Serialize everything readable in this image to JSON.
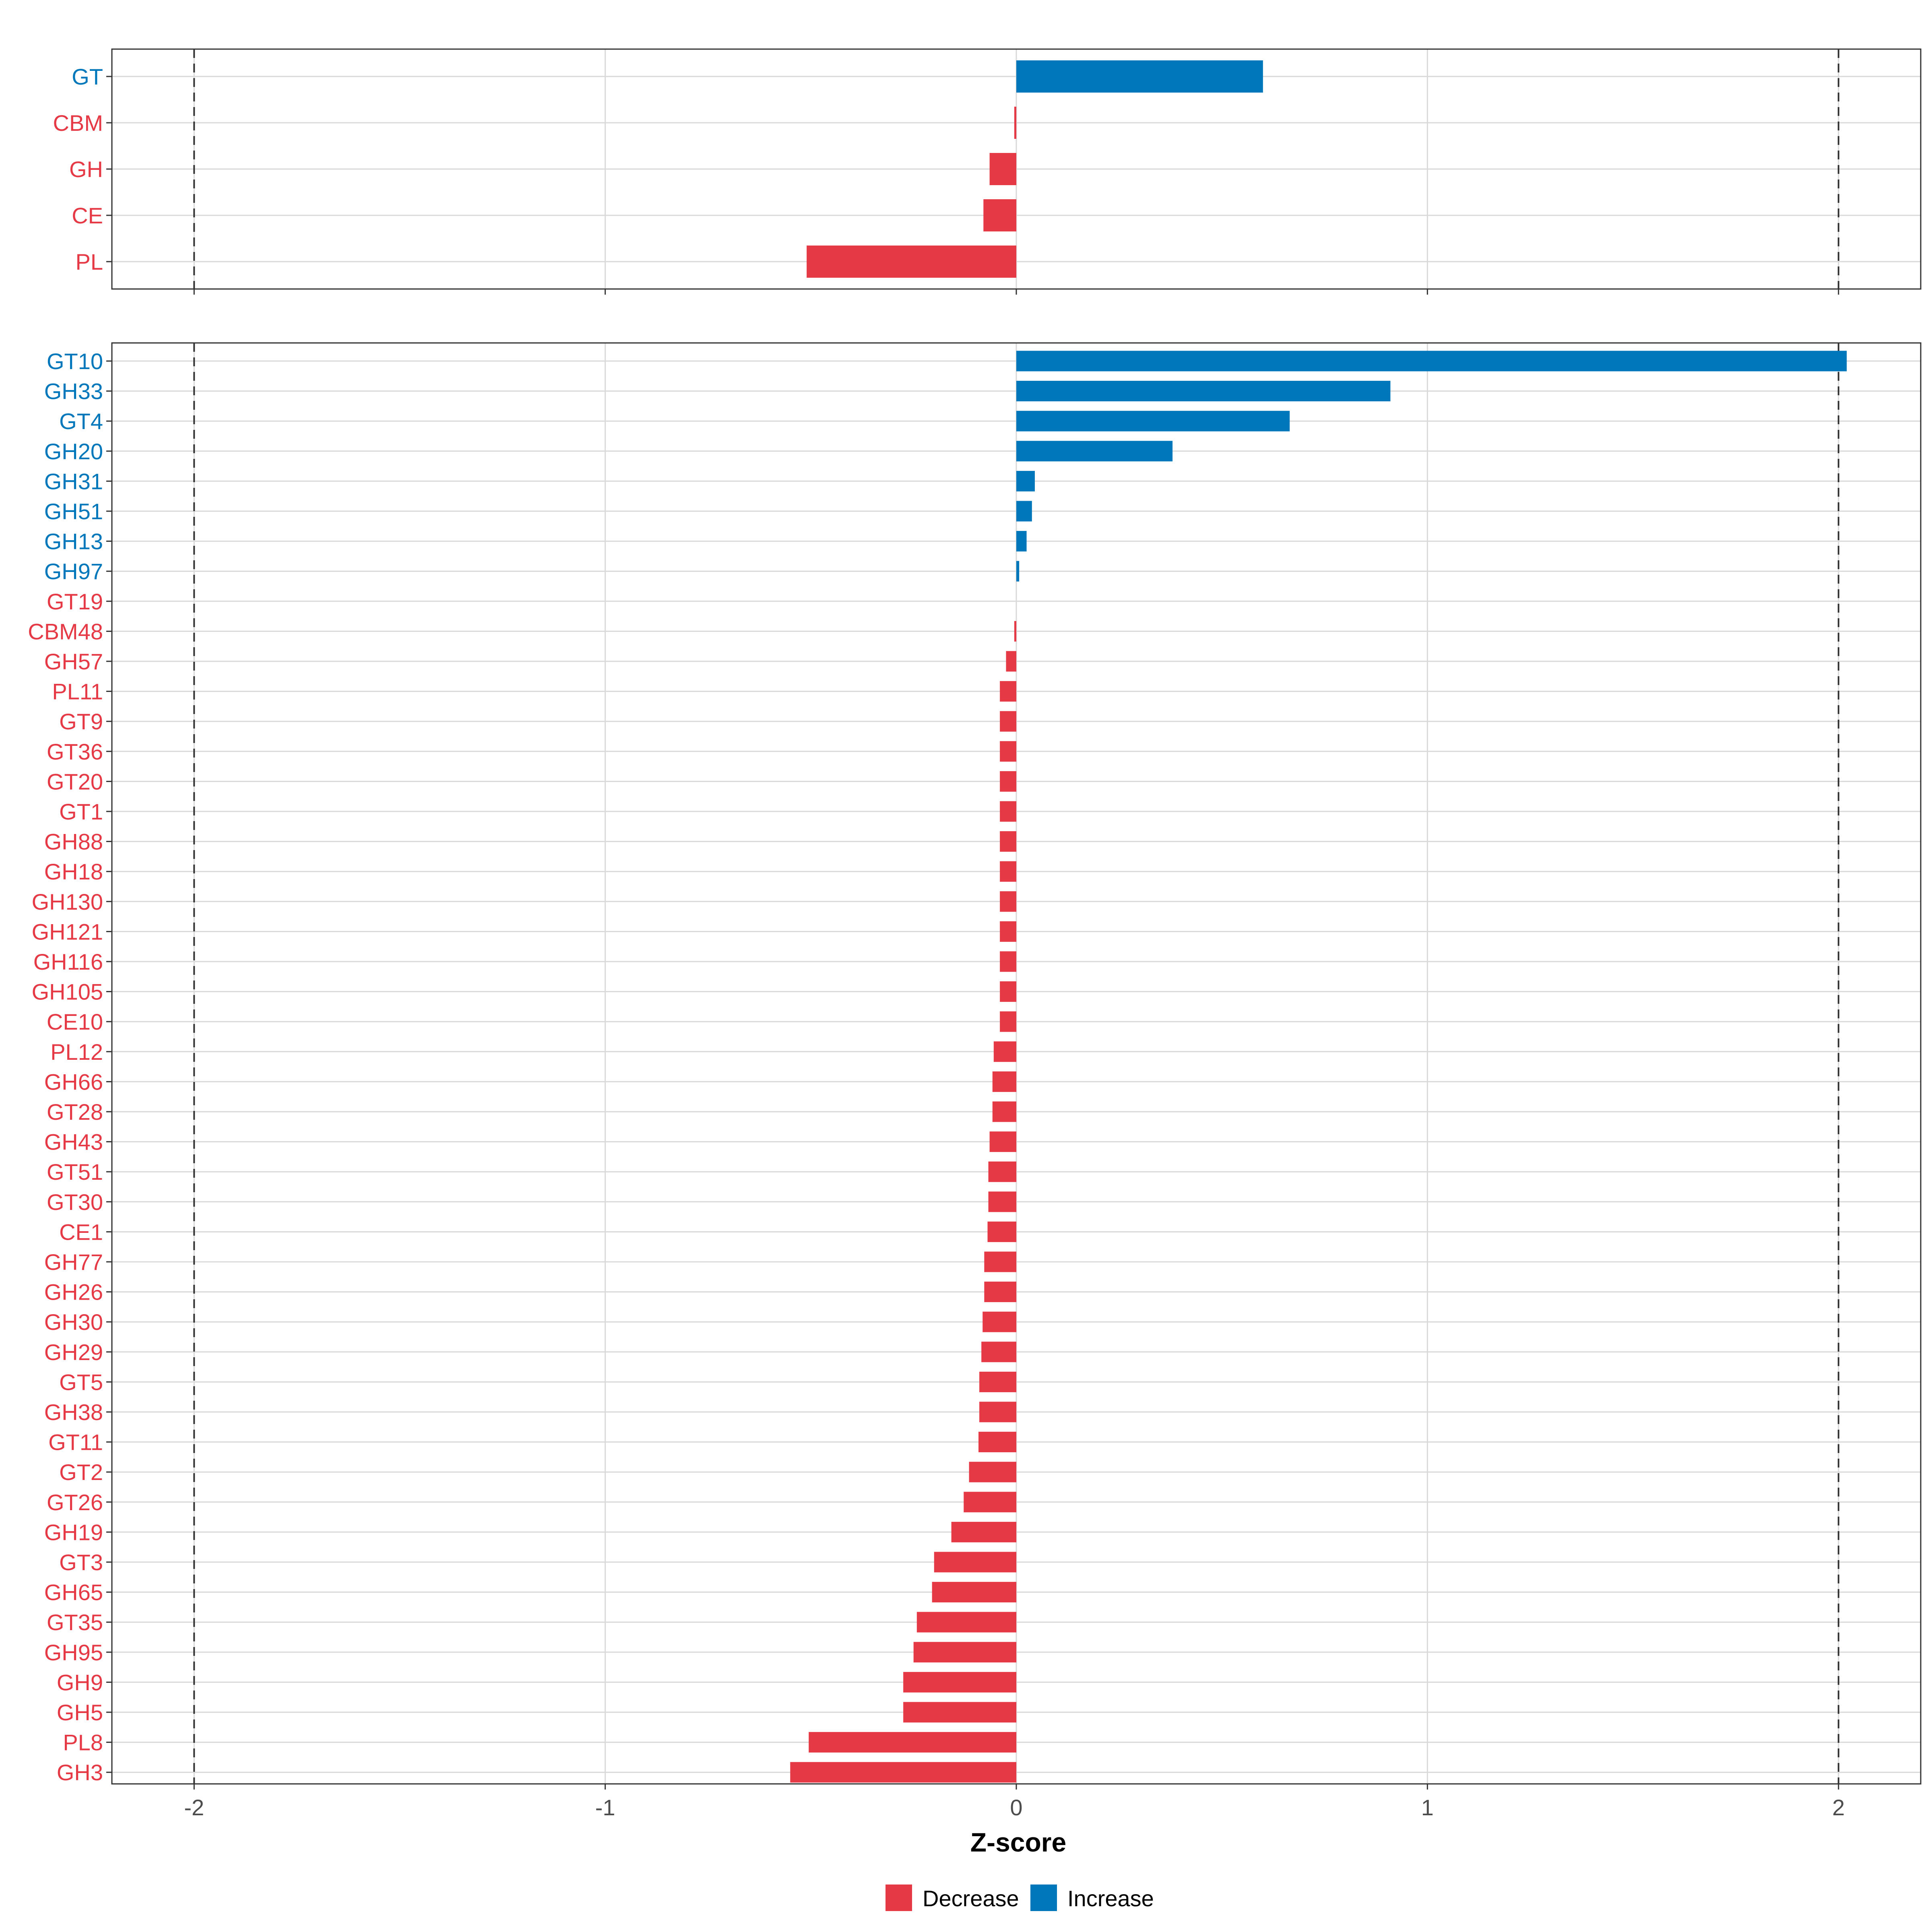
{
  "colors": {
    "decrease": "#E63946",
    "increase": "#0077BB",
    "grid": "#d9d9d9",
    "frame": "#333333"
  },
  "legend": {
    "decrease_label": "Decrease",
    "increase_label": "Increase",
    "position": "bottom"
  },
  "chart_data": {
    "type": "bar",
    "orientation": "horizontal",
    "xlabel": "Z-score",
    "xlim": [
      -2.2,
      2.2
    ],
    "x_ticks": [
      -2,
      -1,
      0,
      1,
      2
    ],
    "x_tick_labels": [
      "-2",
      "-1",
      "0",
      "1",
      "2"
    ],
    "reference_lines": [
      -2,
      2
    ],
    "panels": [
      {
        "name": "top",
        "categories": [
          "GT",
          "CBM",
          "GH",
          "CE",
          "PL"
        ],
        "values": [
          0.6,
          -0.005,
          -0.065,
          -0.08,
          -0.51
        ]
      },
      {
        "name": "bottom",
        "categories": [
          "GT10",
          "GH33",
          "GT4",
          "GH20",
          "GH31",
          "GH51",
          "GH13",
          "GH97",
          "GT19",
          "CBM48",
          "GH57",
          "PL11",
          "GT9",
          "GT36",
          "GT20",
          "GT1",
          "GH88",
          "GH18",
          "GH130",
          "GH121",
          "GH116",
          "GH105",
          "CE10",
          "PL12",
          "GH66",
          "GT28",
          "GH43",
          "GT51",
          "GT30",
          "CE1",
          "GH77",
          "GH26",
          "GH30",
          "GH29",
          "GT5",
          "GH38",
          "GT11",
          "GT2",
          "GT26",
          "GH19",
          "GT3",
          "GH65",
          "GT35",
          "GH95",
          "GH9",
          "GH5",
          "PL8",
          "GH3"
        ],
        "values": [
          2.02,
          0.91,
          0.665,
          0.38,
          0.045,
          0.038,
          0.025,
          0.007,
          0.0,
          -0.005,
          -0.025,
          -0.04,
          -0.04,
          -0.04,
          -0.04,
          -0.04,
          -0.04,
          -0.04,
          -0.04,
          -0.04,
          -0.04,
          -0.04,
          -0.04,
          -0.055,
          -0.058,
          -0.058,
          -0.065,
          -0.068,
          -0.068,
          -0.07,
          -0.078,
          -0.078,
          -0.082,
          -0.085,
          -0.09,
          -0.09,
          -0.092,
          -0.115,
          -0.128,
          -0.158,
          -0.2,
          -0.205,
          -0.242,
          -0.25,
          -0.275,
          -0.275,
          -0.505,
          -0.55
        ]
      }
    ]
  }
}
